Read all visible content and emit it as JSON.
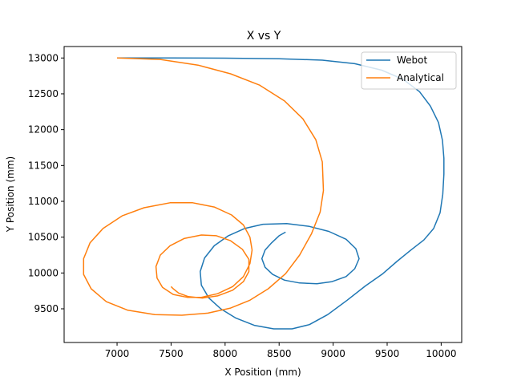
{
  "chart_data": {
    "type": "line",
    "title": "X vs Y",
    "xlabel": "X Position (mm)",
    "ylabel": "Y Position (mm)",
    "xlim": [
      6510,
      10190
    ],
    "ylim": [
      9030,
      13160
    ],
    "xticks": [
      7000,
      7500,
      8000,
      8500,
      9000,
      9500,
      10000
    ],
    "yticks": [
      9500,
      10000,
      10500,
      11000,
      11500,
      12000,
      12500,
      13000
    ],
    "grid": false,
    "legend_position": "top-right",
    "series": [
      {
        "name": "Webot",
        "color": "#1f77b4",
        "points": [
          [
            7000,
            13000
          ],
          [
            7500,
            13000
          ],
          [
            8000,
            12998
          ],
          [
            8500,
            12990
          ],
          [
            8900,
            12970
          ],
          [
            9200,
            12920
          ],
          [
            9450,
            12830
          ],
          [
            9650,
            12700
          ],
          [
            9800,
            12530
          ],
          [
            9900,
            12330
          ],
          [
            9975,
            12100
          ],
          [
            10012,
            11850
          ],
          [
            10025,
            11600
          ],
          [
            10025,
            11380
          ],
          [
            10015,
            11100
          ],
          [
            9990,
            10840
          ],
          [
            9930,
            10620
          ],
          [
            9840,
            10460
          ],
          [
            9720,
            10320
          ],
          [
            9590,
            10160
          ],
          [
            9460,
            9990
          ],
          [
            9300,
            9820
          ],
          [
            9130,
            9620
          ],
          [
            8950,
            9420
          ],
          [
            8780,
            9280
          ],
          [
            8620,
            9220
          ],
          [
            8450,
            9220
          ],
          [
            8270,
            9270
          ],
          [
            8100,
            9370
          ],
          [
            7960,
            9500
          ],
          [
            7850,
            9650
          ],
          [
            7780,
            9830
          ],
          [
            7770,
            10020
          ],
          [
            7810,
            10210
          ],
          [
            7900,
            10380
          ],
          [
            8030,
            10520
          ],
          [
            8180,
            10620
          ],
          [
            8350,
            10680
          ],
          [
            8570,
            10690
          ],
          [
            8780,
            10650
          ],
          [
            8960,
            10580
          ],
          [
            9120,
            10470
          ],
          [
            9210,
            10340
          ],
          [
            9240,
            10200
          ],
          [
            9200,
            10060
          ],
          [
            9120,
            9950
          ],
          [
            8990,
            9880
          ],
          [
            8850,
            9850
          ],
          [
            8690,
            9860
          ],
          [
            8550,
            9900
          ],
          [
            8440,
            9980
          ],
          [
            8370,
            10080
          ],
          [
            8340,
            10200
          ],
          [
            8370,
            10320
          ],
          [
            8430,
            10420
          ],
          [
            8500,
            10520
          ],
          [
            8560,
            10570
          ]
        ]
      },
      {
        "name": "Analytical",
        "color": "#ff7f0e",
        "points": [
          [
            7000,
            13000
          ],
          [
            7400,
            12980
          ],
          [
            7750,
            12900
          ],
          [
            8050,
            12780
          ],
          [
            8320,
            12620
          ],
          [
            8550,
            12400
          ],
          [
            8720,
            12150
          ],
          [
            8840,
            11860
          ],
          [
            8900,
            11550
          ],
          [
            8910,
            11150
          ],
          [
            8880,
            10850
          ],
          [
            8800,
            10550
          ],
          [
            8690,
            10250
          ],
          [
            8560,
            9990
          ],
          [
            8400,
            9780
          ],
          [
            8230,
            9620
          ],
          [
            8050,
            9510
          ],
          [
            7840,
            9440
          ],
          [
            7600,
            9410
          ],
          [
            7350,
            9420
          ],
          [
            7100,
            9480
          ],
          [
            6900,
            9600
          ],
          [
            6760,
            9780
          ],
          [
            6690,
            9980
          ],
          [
            6690,
            10200
          ],
          [
            6750,
            10420
          ],
          [
            6870,
            10620
          ],
          [
            7050,
            10800
          ],
          [
            7250,
            10910
          ],
          [
            7490,
            10980
          ],
          [
            7700,
            10980
          ],
          [
            7900,
            10920
          ],
          [
            8060,
            10810
          ],
          [
            8170,
            10670
          ],
          [
            8230,
            10500
          ],
          [
            8250,
            10320
          ],
          [
            8230,
            10130
          ],
          [
            8170,
            9950
          ],
          [
            8070,
            9810
          ],
          [
            7930,
            9710
          ],
          [
            7780,
            9660
          ],
          [
            7650,
            9660
          ],
          [
            7520,
            9700
          ],
          [
            7420,
            9800
          ],
          [
            7370,
            9930
          ],
          [
            7360,
            10090
          ],
          [
            7400,
            10250
          ],
          [
            7490,
            10380
          ],
          [
            7620,
            10480
          ],
          [
            7780,
            10530
          ],
          [
            7920,
            10520
          ],
          [
            8050,
            10450
          ],
          [
            8160,
            10330
          ],
          [
            8220,
            10190
          ],
          [
            8220,
            10020
          ],
          [
            8170,
            9880
          ],
          [
            8070,
            9760
          ],
          [
            7930,
            9680
          ],
          [
            7790,
            9650
          ],
          [
            7660,
            9670
          ],
          [
            7570,
            9720
          ],
          [
            7520,
            9780
          ],
          [
            7500,
            9810
          ]
        ]
      }
    ]
  }
}
